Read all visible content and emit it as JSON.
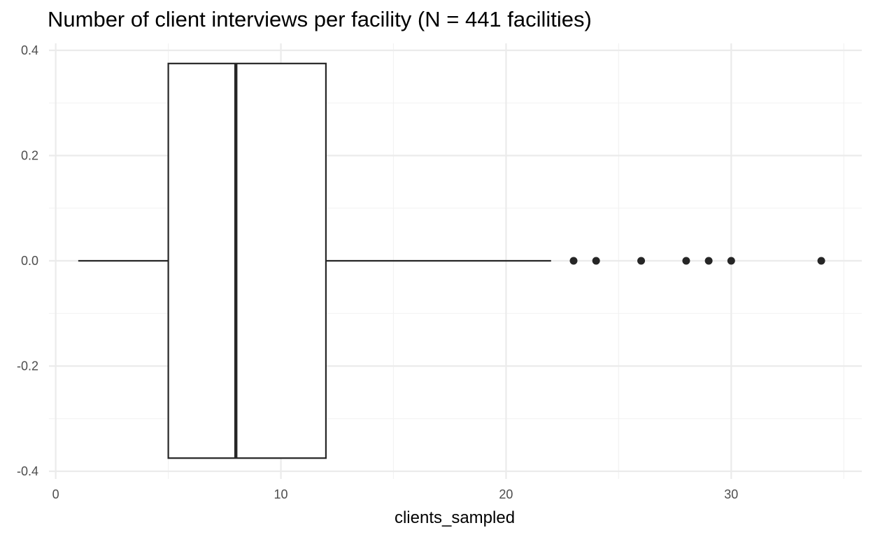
{
  "chart_data": {
    "type": "boxplot",
    "title": "Number of client interviews per facility (N = 441 facilities)",
    "xlabel": "clients_sampled",
    "ylabel": "",
    "xlim": [
      -0.3,
      35.8
    ],
    "ylim": [
      -0.4,
      0.4
    ],
    "x_ticks": [
      0,
      10,
      20,
      30
    ],
    "x_tick_labels": [
      "0",
      "10",
      "20",
      "30"
    ],
    "y_ticks": [
      -0.4,
      -0.2,
      0.0,
      0.2,
      0.4
    ],
    "y_tick_labels": [
      "-0.4",
      "-0.2",
      "0.0",
      "0.2",
      "0.4"
    ],
    "grid": true,
    "box": {
      "min": 1,
      "q1": 5,
      "median": 8,
      "q3": 12,
      "max": 22,
      "y_center": 0,
      "half_width": 0.375
    },
    "outliers": [
      23,
      24,
      26,
      28,
      29,
      30,
      34
    ],
    "colors": {
      "box_stroke": "#262626",
      "box_fill": "#ffffff",
      "outlier": "#262626",
      "grid": "#ebebeb",
      "background": "#ffffff"
    }
  }
}
